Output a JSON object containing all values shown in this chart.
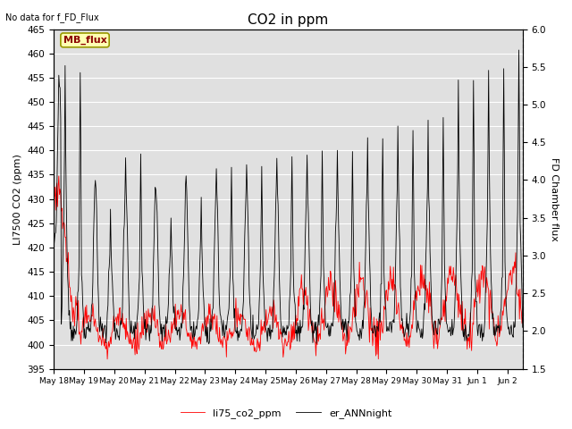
{
  "title": "CO2 in ppm",
  "top_left_text": "No data for f_FD_Flux",
  "legend_box_text": "MB_flux",
  "ylabel_left": "LI7500 CO2 (ppm)",
  "ylabel_right": "FD Chamber flux",
  "ylim_left": [
    395,
    465
  ],
  "ylim_right": [
    1.5,
    6.0
  ],
  "yticks_left": [
    395,
    400,
    405,
    410,
    415,
    420,
    425,
    430,
    435,
    440,
    445,
    450,
    455,
    460,
    465
  ],
  "yticks_right": [
    1.5,
    2.0,
    2.5,
    3.0,
    3.5,
    4.0,
    4.5,
    5.0,
    5.5,
    6.0
  ],
  "legend_labels": [
    "li75_co2_ppm",
    "er_ANNnight"
  ],
  "line1_color": "red",
  "line2_color": "black",
  "background_color": "#e0e0e0",
  "grid_color": "white",
  "title_fontsize": 11,
  "axis_fontsize": 8,
  "tick_fontsize": 7.5
}
